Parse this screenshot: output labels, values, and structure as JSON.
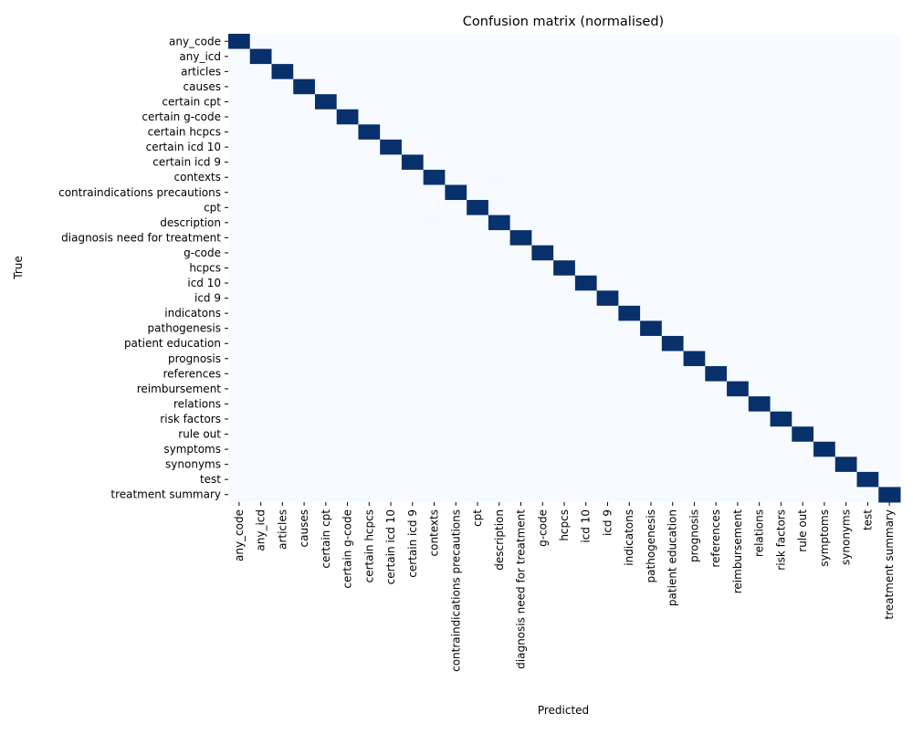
{
  "chart_data": {
    "type": "heatmap",
    "title": "Confusion matrix (normalised)",
    "xlabel": "Predicted",
    "ylabel": "True",
    "colormap": "Blues",
    "color_low": "#f7fbff",
    "color_high": "#08306b",
    "value_range": [
      0,
      1
    ],
    "colorbar": false,
    "labels": [
      "any_code",
      "any_icd",
      "articles",
      "causes",
      "certain cpt",
      "certain g-code",
      "certain hcpcs",
      "certain icd 10",
      "certain icd 9",
      "contexts",
      "contraindications precautions",
      "cpt",
      "description",
      "diagnosis need for treatment",
      "g-code",
      "hcpcs",
      "icd 10",
      "icd 9",
      "indicatons",
      "pathogenesis",
      "patient education",
      "prognosis",
      "references",
      "reimbursement",
      "relations",
      "risk factors",
      "rule out",
      "symptoms",
      "synonyms",
      "test",
      "treatment summary"
    ],
    "diagonal": [
      1,
      1,
      1,
      1,
      1,
      1,
      1,
      1,
      1,
      0.99,
      1,
      1,
      0.99,
      1,
      1,
      1,
      1,
      1,
      1,
      1,
      1,
      1,
      1,
      1,
      1,
      1,
      1,
      1,
      1,
      1,
      1
    ],
    "off_diagonal": [
      {
        "true": "contexts",
        "predicted": "description",
        "value": 0.01
      },
      {
        "true": "description",
        "predicted": "contexts",
        "value": 0.01
      }
    ]
  }
}
